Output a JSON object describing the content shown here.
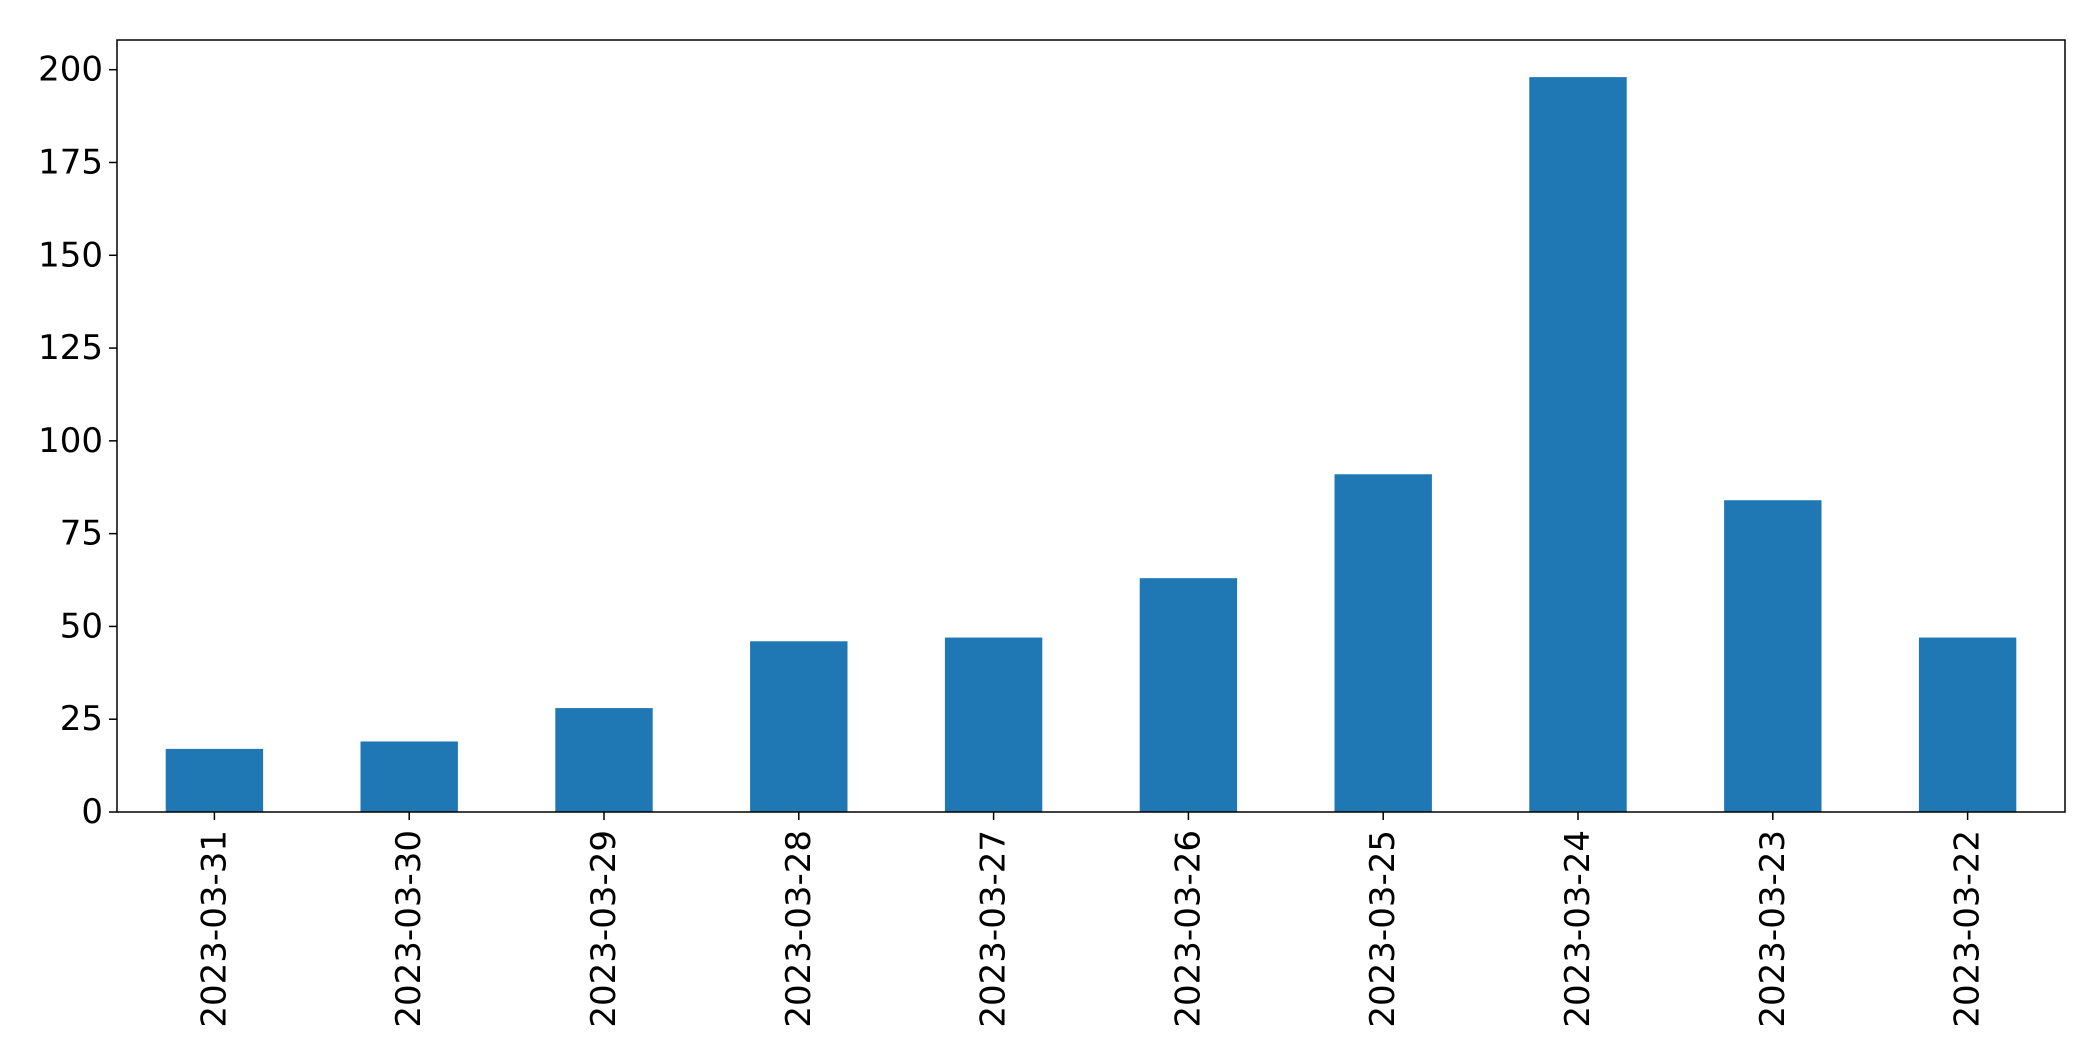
{
  "chart_data": {
    "type": "bar",
    "title": "",
    "xlabel": "",
    "ylabel": "",
    "categories": [
      "2023-03-31",
      "2023-03-30",
      "2023-03-29",
      "2023-03-28",
      "2023-03-27",
      "2023-03-26",
      "2023-03-25",
      "2023-03-24",
      "2023-03-23",
      "2023-03-22"
    ],
    "values": [
      17,
      19,
      28,
      46,
      47,
      63,
      91,
      198,
      84,
      47
    ],
    "ylim": [
      0,
      208
    ],
    "yticks": [
      0,
      25,
      50,
      75,
      100,
      125,
      150,
      175,
      200
    ],
    "grid": false,
    "legend": "none",
    "bar_color": "#1f77b4"
  }
}
